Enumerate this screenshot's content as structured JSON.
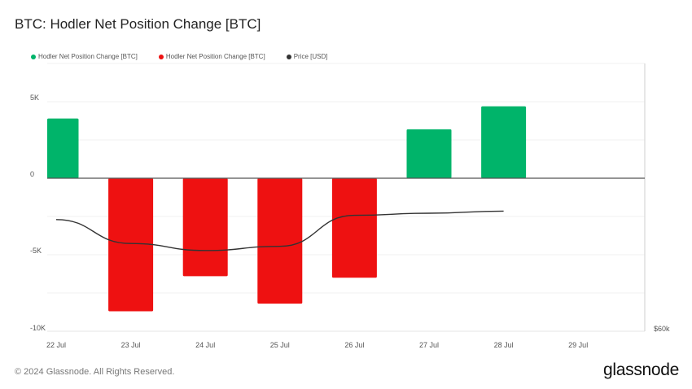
{
  "title": "BTC: Hodler Net Position Change [BTC]",
  "legend": [
    {
      "label": "Hodler Net Position Change [BTC]",
      "color": "#00b46a"
    },
    {
      "label": "Hodler Net Position Change [BTC]",
      "color": "#ee1111"
    },
    {
      "label": "Price [USD]",
      "color": "#333333"
    }
  ],
  "footer": {
    "copyright": "© 2024 Glassnode. All Rights Reserved.",
    "logo": "glassnode"
  },
  "chart_data": {
    "type": "bar",
    "title": "BTC: Hodler Net Position Change [BTC]",
    "categories": [
      "22 Jul",
      "23 Jul",
      "24 Jul",
      "25 Jul",
      "26 Jul",
      "27 Jul",
      "28 Jul",
      "29 Jul"
    ],
    "series": [
      {
        "name": "Hodler Net Position Change [BTC]",
        "type": "bar",
        "values": [
          3900,
          -8700,
          -6400,
          -8200,
          -6500,
          3200,
          4700,
          null
        ],
        "positive_color": "#00b46a",
        "negative_color": "#ee1111"
      },
      {
        "name": "Price [USD]",
        "type": "line",
        "axis": "right",
        "values": [
          67700,
          66000,
          65500,
          65800,
          68000,
          68150,
          68300,
          null
        ],
        "color": "#333333"
      }
    ],
    "y_ticks": [
      {
        "value": 5000,
        "label": "5K"
      },
      {
        "value": 0,
        "label": "0"
      },
      {
        "value": -5000,
        "label": "-5K"
      },
      {
        "value": -10000,
        "label": "-10K"
      }
    ],
    "ylim": [
      -10000,
      7500
    ],
    "y2_ticks": [
      {
        "value": 60000,
        "label": "$60k"
      }
    ],
    "y2lim": [
      60000,
      79000
    ],
    "grid": true
  }
}
